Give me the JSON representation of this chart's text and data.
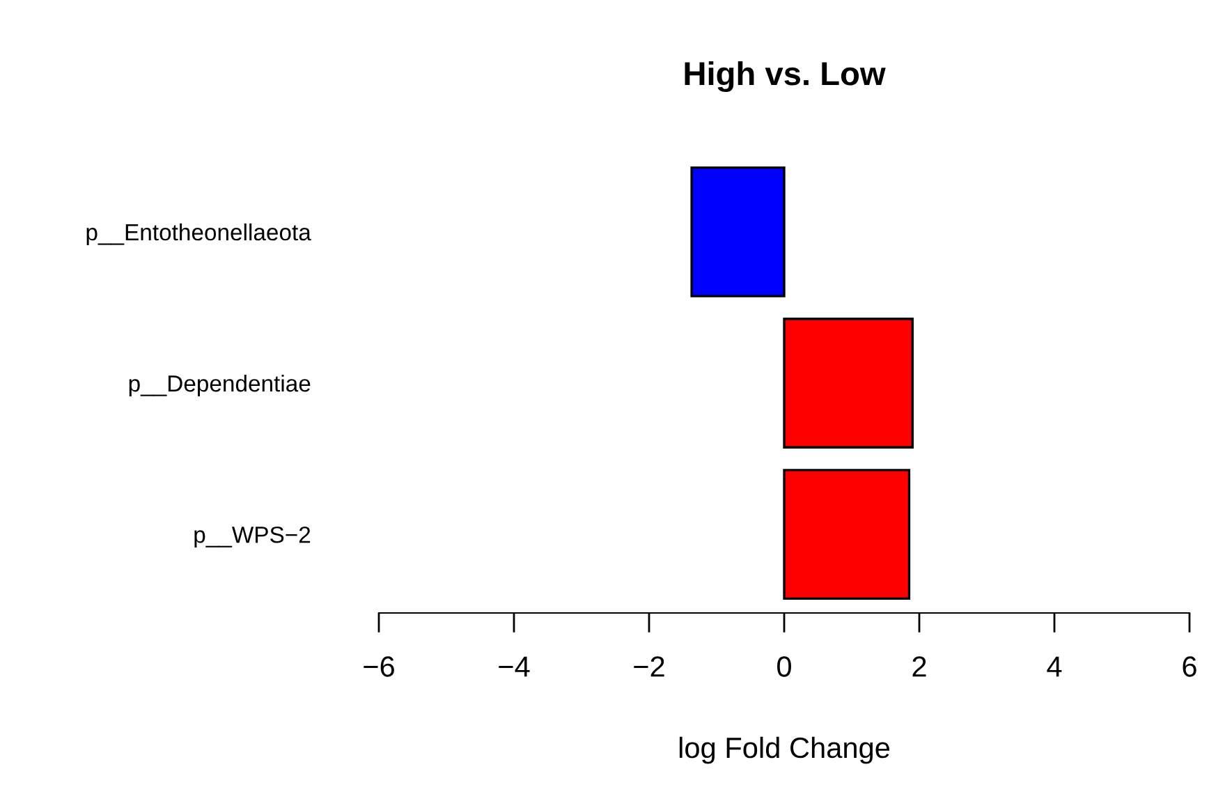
{
  "chart_data": {
    "type": "bar",
    "orientation": "horizontal",
    "title": "High vs. Low",
    "xlabel": "log Fold Change",
    "categories": [
      "p__Entotheonellaeota",
      "p__Dependentiae",
      "p__WPS−2"
    ],
    "values": [
      -1.37,
      1.9,
      1.85
    ],
    "colors": [
      "#0000ff",
      "#ff0000",
      "#ff0000"
    ],
    "xlim": [
      -6,
      6
    ],
    "xticks": [
      -6,
      -4,
      -2,
      0,
      2,
      4,
      6
    ],
    "grid": false,
    "legend": false
  }
}
